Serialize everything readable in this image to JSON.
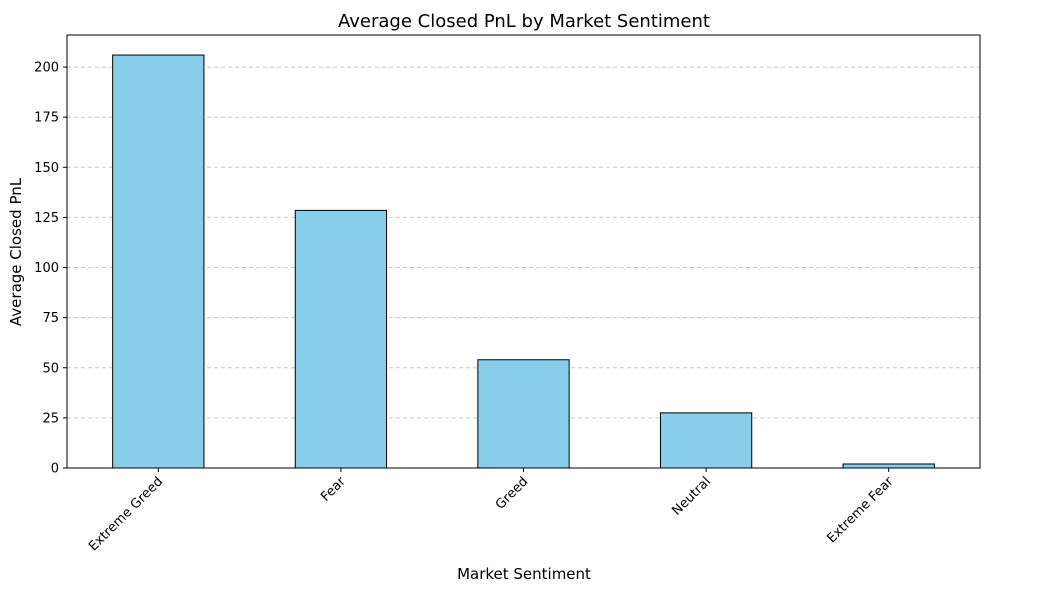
{
  "chart_data": {
    "type": "bar",
    "title": "Average Closed PnL by Market Sentiment",
    "xlabel": "Market Sentiment",
    "ylabel": "Average Closed PnL",
    "categories": [
      "Extreme Greed",
      "Fear",
      "Greed",
      "Neutral",
      "Extreme Fear"
    ],
    "values": [
      206,
      128.5,
      54,
      27.5,
      2
    ],
    "ylim": [
      0,
      216
    ],
    "yticks": [
      0,
      25,
      50,
      75,
      100,
      125,
      150,
      175,
      200
    ],
    "grid": "y-dashed",
    "colors": {
      "bar": "#87ceeb",
      "bar_edge": "#000000",
      "grid": "#c8c8c8"
    }
  }
}
